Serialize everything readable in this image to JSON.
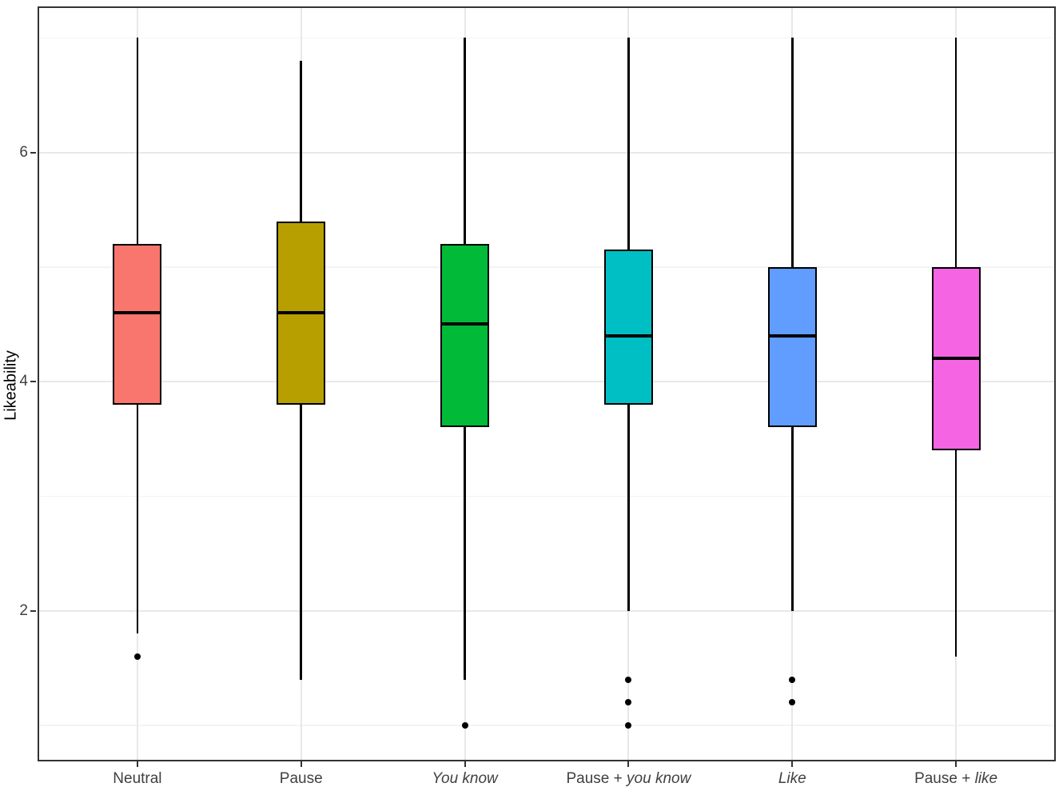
{
  "chart_data": {
    "type": "boxplot",
    "title": "",
    "xlabel": "",
    "ylabel": "Likeability",
    "y_major_ticks": [
      2,
      4,
      6
    ],
    "y_minor_gridlines": [
      1,
      3,
      5,
      7
    ],
    "ylim": [
      0.7,
      7.26
    ],
    "x_expand_slots": 0.6,
    "grid": "on",
    "legend": "none",
    "categories": [
      {
        "name": "Neutral",
        "label_segments": [
          {
            "text": "Neutral",
            "italic": false
          }
        ],
        "color": "#F8766D",
        "whisker_low": 1.8,
        "q1": 3.8,
        "median": 4.6,
        "q3": 5.2,
        "whisker_high": 7.0,
        "outliers": [
          1.6
        ]
      },
      {
        "name": "Pause",
        "label_segments": [
          {
            "text": "Pause",
            "italic": false
          }
        ],
        "color": "#B79F00",
        "whisker_low": 1.4,
        "q1": 3.8,
        "median": 4.6,
        "q3": 5.4,
        "whisker_high": 6.8,
        "outliers": []
      },
      {
        "name": "You know",
        "label_segments": [
          {
            "text": "You know",
            "italic": true
          }
        ],
        "color": "#00BA38",
        "whisker_low": 1.4,
        "q1": 3.6,
        "median": 4.5,
        "q3": 5.2,
        "whisker_high": 7.0,
        "outliers": [
          1.0
        ]
      },
      {
        "name": "Pause + you know",
        "label_segments": [
          {
            "text": "Pause + ",
            "italic": false
          },
          {
            "text": "you know",
            "italic": true
          }
        ],
        "color": "#00BFC4",
        "whisker_low": 2.0,
        "q1": 3.8,
        "median": 4.4,
        "q3": 5.15,
        "whisker_high": 7.0,
        "outliers": [
          1.4,
          1.2,
          1.0
        ]
      },
      {
        "name": "Like",
        "label_segments": [
          {
            "text": "Like",
            "italic": true
          }
        ],
        "color": "#619CFF",
        "whisker_low": 2.0,
        "q1": 3.6,
        "median": 4.4,
        "q3": 5.0,
        "whisker_high": 7.0,
        "outliers": [
          1.4,
          1.2
        ]
      },
      {
        "name": "Pause + like",
        "label_segments": [
          {
            "text": "Pause + ",
            "italic": false
          },
          {
            "text": "like",
            "italic": true
          }
        ],
        "color": "#F564E3",
        "whisker_low": 1.6,
        "q1": 3.4,
        "median": 4.2,
        "q3": 5.0,
        "whisker_high": 7.0,
        "outliers": []
      }
    ],
    "styles": {
      "panel_border": "#333333",
      "major_gridline": "#E8E8E8",
      "minor_gridline": "#F3F3F3",
      "box_outline": "#000000",
      "median_color": "#000000",
      "whisker_color": "#000000",
      "outlier_color": "#000000",
      "axis_text_color": "#404040",
      "axis_title_color": "#000000",
      "tick_mark_color": "#333333",
      "background": "#FFFFFF"
    }
  }
}
